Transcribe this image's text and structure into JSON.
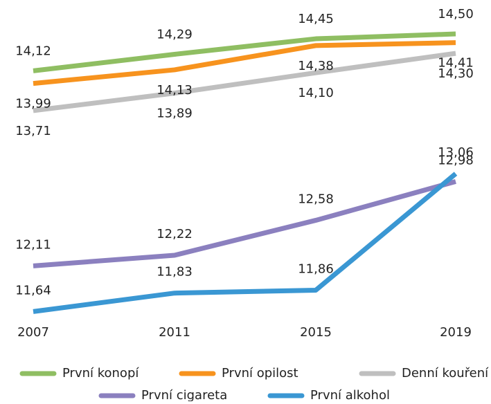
{
  "chart_data": {
    "type": "line",
    "categories": [
      "2007",
      "2011",
      "2015",
      "2019"
    ],
    "ylim": [
      11.5,
      14.6
    ],
    "series": [
      {
        "name": "První konopí",
        "color": "#8fbe62",
        "values": [
          14.12,
          14.29,
          14.45,
          14.5
        ],
        "value_labels": [
          "14,12",
          "14,29",
          "14,45",
          "14,50"
        ]
      },
      {
        "name": "První opilost",
        "color": "#f7931e",
        "values": [
          13.99,
          14.13,
          14.38,
          14.41
        ],
        "value_labels": [
          "13,99",
          "14,13",
          "14,38",
          "14,41"
        ]
      },
      {
        "name": "Denní kouření",
        "color": "#bfbfbf",
        "values": [
          13.71,
          13.89,
          14.1,
          14.3
        ],
        "value_labels": [
          "13,71",
          "13,89",
          "14,10",
          "14,30"
        ]
      },
      {
        "name": "První cigareta",
        "color": "#8b80bf",
        "values": [
          12.11,
          12.22,
          12.58,
          12.98
        ],
        "value_labels": [
          "12,11",
          "12,22",
          "12,58",
          "12,98"
        ]
      },
      {
        "name": "První alkohol",
        "color": "#3a97d3",
        "values": [
          11.64,
          11.83,
          11.86,
          13.06
        ],
        "value_labels": [
          "11,64",
          "11,83",
          "11,86",
          "13,06"
        ]
      }
    ]
  }
}
